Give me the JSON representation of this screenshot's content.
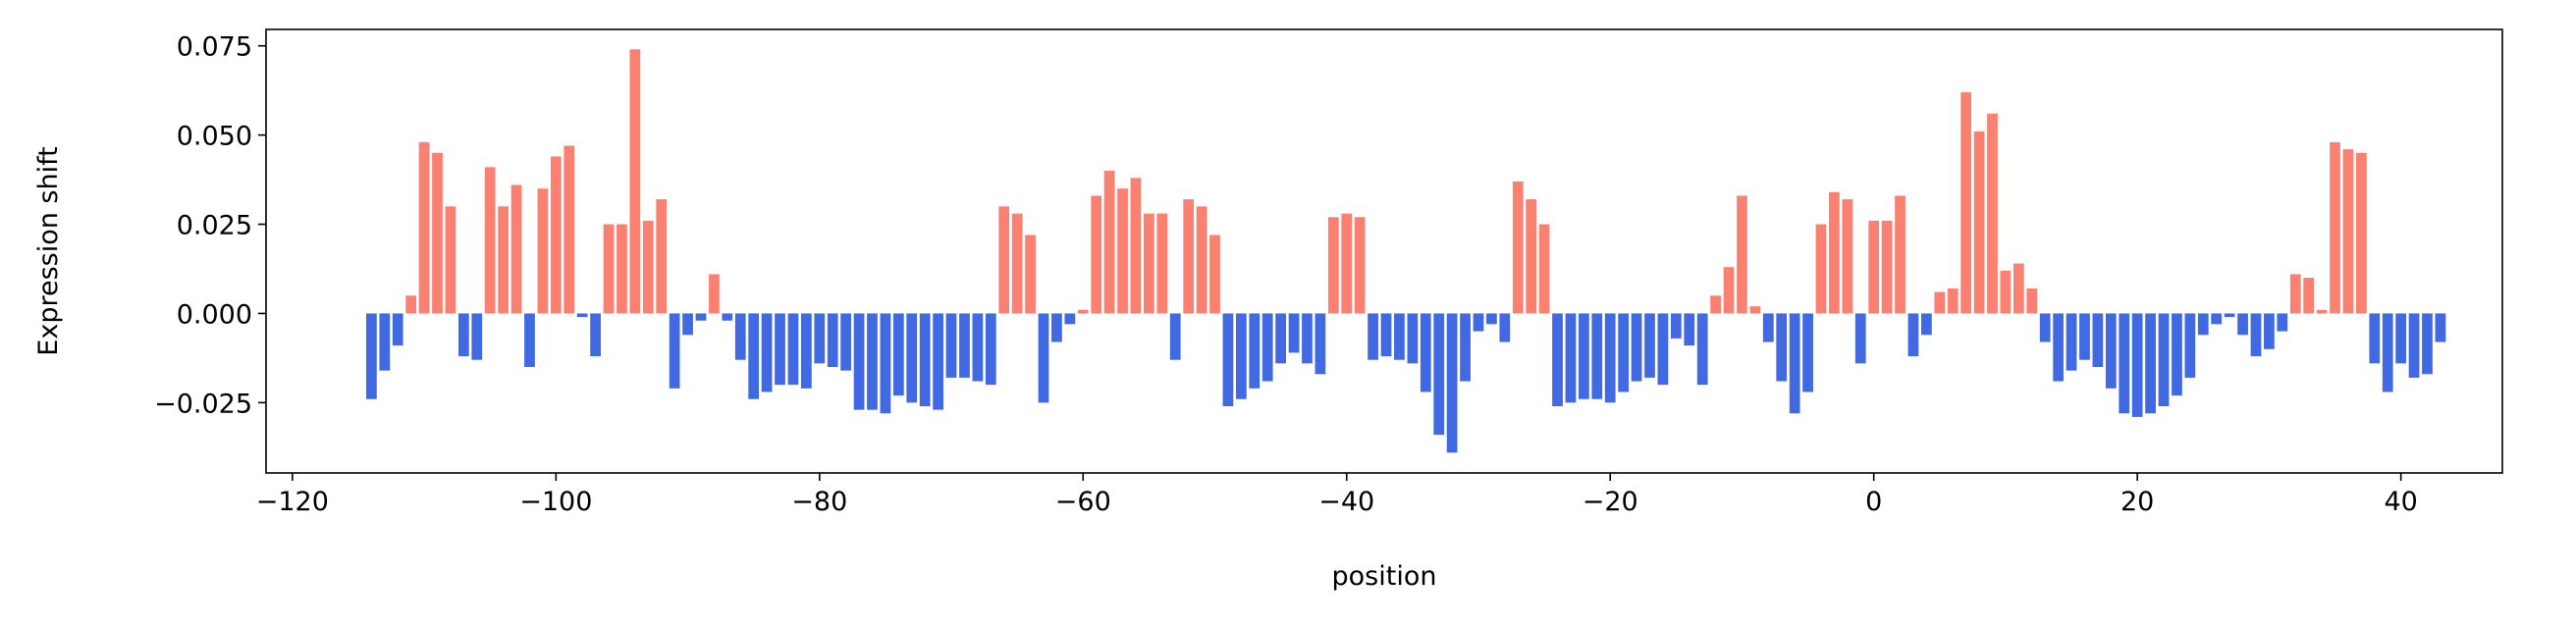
{
  "chart_data": {
    "type": "bar",
    "xlabel": "position",
    "ylabel": "Expression shift",
    "x": [
      -114,
      -113,
      -112,
      -111,
      -110,
      -109,
      -108,
      -107,
      -106,
      -105,
      -104,
      -103,
      -102,
      -101,
      -100,
      -99,
      -98,
      -97,
      -96,
      -95,
      -94,
      -93,
      -92,
      -91,
      -90,
      -89,
      -88,
      -87,
      -86,
      -85,
      -84,
      -83,
      -82,
      -81,
      -80,
      -79,
      -78,
      -77,
      -76,
      -75,
      -74,
      -73,
      -72,
      -71,
      -70,
      -69,
      -68,
      -67,
      -66,
      -65,
      -64,
      -63,
      -62,
      -61,
      -60,
      -59,
      -58,
      -57,
      -56,
      -55,
      -54,
      -53,
      -52,
      -51,
      -50,
      -49,
      -48,
      -47,
      -46,
      -45,
      -44,
      -43,
      -42,
      -41,
      -40,
      -39,
      -38,
      -37,
      -36,
      -35,
      -34,
      -33,
      -32,
      -31,
      -30,
      -29,
      -28,
      -27,
      -26,
      -25,
      -24,
      -23,
      -22,
      -21,
      -20,
      -19,
      -18,
      -17,
      -16,
      -15,
      -14,
      -13,
      -12,
      -11,
      -10,
      -9,
      -8,
      -7,
      -6,
      -5,
      -4,
      -3,
      -2,
      -1,
      0,
      1,
      2,
      3,
      4,
      5,
      6,
      7,
      8,
      9,
      10,
      11,
      12,
      13,
      14,
      15,
      16,
      17,
      18,
      19,
      20,
      21,
      22,
      23,
      24,
      25,
      26,
      27,
      28,
      29,
      30,
      31,
      32,
      33,
      34,
      35,
      36,
      37,
      38,
      39,
      40,
      41,
      42,
      43
    ],
    "values": [
      -0.024,
      -0.016,
      -0.009,
      0.005,
      0.048,
      0.045,
      0.03,
      -0.012,
      -0.013,
      0.041,
      0.03,
      0.036,
      -0.015,
      0.035,
      0.044,
      0.047,
      -0.001,
      -0.012,
      0.025,
      0.025,
      0.074,
      0.026,
      0.032,
      -0.021,
      -0.006,
      -0.002,
      0.011,
      -0.002,
      -0.013,
      -0.024,
      -0.022,
      -0.02,
      -0.02,
      -0.021,
      -0.014,
      -0.015,
      -0.016,
      -0.027,
      -0.027,
      -0.028,
      -0.023,
      -0.025,
      -0.026,
      -0.027,
      -0.018,
      -0.018,
      -0.019,
      -0.02,
      0.03,
      0.028,
      0.022,
      -0.025,
      -0.008,
      -0.003,
      0.001,
      0.033,
      0.04,
      0.035,
      0.038,
      0.028,
      0.028,
      -0.013,
      0.032,
      0.03,
      0.022,
      -0.026,
      -0.024,
      -0.021,
      -0.019,
      -0.014,
      -0.011,
      -0.014,
      -0.017,
      0.027,
      0.028,
      0.027,
      -0.013,
      -0.012,
      -0.013,
      -0.014,
      -0.022,
      -0.034,
      -0.039,
      -0.019,
      -0.005,
      -0.003,
      -0.008,
      0.037,
      0.032,
      0.025,
      -0.026,
      -0.025,
      -0.024,
      -0.024,
      -0.025,
      -0.022,
      -0.019,
      -0.018,
      -0.02,
      -0.007,
      -0.009,
      -0.02,
      0.005,
      0.013,
      0.033,
      0.002,
      -0.008,
      -0.019,
      -0.028,
      -0.022,
      0.025,
      0.034,
      0.032,
      -0.014,
      0.026,
      0.026,
      0.033,
      -0.012,
      -0.006,
      0.006,
      0.007,
      0.062,
      0.051,
      0.056,
      0.012,
      0.014,
      0.007,
      -0.008,
      -0.019,
      -0.016,
      -0.013,
      -0.015,
      -0.021,
      -0.028,
      -0.029,
      -0.028,
      -0.026,
      -0.023,
      -0.018,
      -0.006,
      -0.003,
      -0.001,
      -0.006,
      -0.012,
      -0.01,
      -0.005,
      0.011,
      0.01,
      0.001,
      0.048,
      0.046,
      0.045,
      -0.014,
      -0.022,
      -0.014,
      -0.018,
      -0.017,
      -0.008
    ],
    "positive_color": "#fa8072",
    "negative_color": "#4169e1",
    "xlim": [
      -122,
      47.7
    ],
    "ylim": [
      -0.0447,
      0.0796
    ],
    "xticks": [
      {
        "value": -120,
        "label": "−120"
      },
      {
        "value": -100,
        "label": "−100"
      },
      {
        "value": -80,
        "label": "−80"
      },
      {
        "value": -60,
        "label": "−60"
      },
      {
        "value": -40,
        "label": "−40"
      },
      {
        "value": -20,
        "label": "−20"
      },
      0,
      20,
      40
    ],
    "yticks": [
      {
        "value": -0.025,
        "label": "−0.025"
      },
      {
        "value": 0,
        "label": "0.000"
      },
      {
        "value": 0.025,
        "label": "0.025"
      },
      {
        "value": 0.05,
        "label": "0.050"
      },
      {
        "value": 0.075,
        "label": "0.075"
      }
    ]
  }
}
